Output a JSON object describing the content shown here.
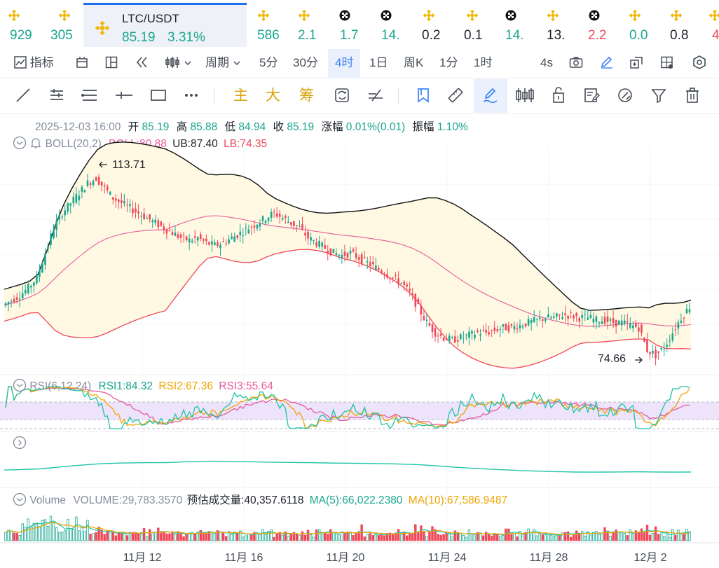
{
  "ticker": {
    "items": [
      {
        "value": "929",
        "icon": "binance-icon",
        "color": "#1aa68f"
      },
      {
        "value": "305",
        "icon": "binance-icon",
        "color": "#1aa68f"
      },
      {
        "value": "586",
        "icon": "binance-icon",
        "color": "#1aa68f"
      },
      {
        "value": "2.1",
        "icon": "binance-icon",
        "color": "#1aa68f"
      },
      {
        "value": "1.7",
        "icon": "checker-icon",
        "color": "#1aa68f"
      },
      {
        "value": "14.",
        "icon": "checker-icon",
        "color": "#1aa68f"
      },
      {
        "value": "0.2",
        "icon": "binance-icon",
        "color": "#1e2329"
      },
      {
        "value": "0.1",
        "icon": "binance-icon",
        "color": "#1e2329"
      },
      {
        "value": "14.",
        "icon": "checker-icon",
        "color": "#1aa68f"
      },
      {
        "value": "13.",
        "icon": "binance-icon",
        "color": "#1e2329"
      },
      {
        "value": "2.2",
        "icon": "checker-icon",
        "color": "#f04859"
      },
      {
        "value": "0.0",
        "icon": "binance-icon",
        "color": "#1aa68f"
      },
      {
        "value": "0.8",
        "icon": "binance-icon",
        "color": "#1e2329"
      },
      {
        "value": "4",
        "icon": "binance-icon",
        "color": "#f04859"
      }
    ],
    "active": {
      "symbol": "LTC/USDT",
      "price": "85.19",
      "change": "3.31%"
    }
  },
  "toolbar": {
    "indicator_label": "指标",
    "period_label": "周期",
    "intervals": [
      "5分",
      "30分",
      "4时",
      "1日",
      "周K",
      "1分",
      "1时"
    ],
    "selected_interval": "4时",
    "refresh": "4s"
  },
  "drawing_tools": {
    "zhu": "主",
    "da": "大",
    "chou": "筹"
  },
  "ohlc": {
    "date": "2025-12-03 16:00",
    "open_label": "开",
    "open": "85.19",
    "high_label": "高",
    "high": "85.88",
    "low_label": "低",
    "low": "84.94",
    "close_label": "收",
    "close": "85.19",
    "chg_label": "涨幅",
    "chg": "0.01%(0.01)",
    "amp_label": "振幅",
    "amp": "1.10%"
  },
  "boll": {
    "name": "BOLL(20,2)",
    "boll": "BOLL:80.88",
    "ub": "UB:87.40",
    "lb": "LB:74.35"
  },
  "price_labels": {
    "high": "113.71",
    "low": "74.66"
  },
  "rsi": {
    "name": "RSI(6,12,24)",
    "rsi1": "RSI1:84.32",
    "rsi2": "RSI2:67.36",
    "rsi3": "RSI3:55.64"
  },
  "volume": {
    "name": "Volume",
    "volume": "VOLUME:29,783.3570",
    "estimate": "预估成交量:40,357.6118",
    "ma5": "MA(5):66,022.2380",
    "ma10": "MA(10):67,586.9487"
  },
  "xaxis": [
    "11月 12",
    "11月 16",
    "11月 20",
    "11月 24",
    "11月 28",
    "12月 2"
  ],
  "colors": {
    "up": "#1aa68f",
    "down": "#f04859",
    "accent": "#3b82f6",
    "gold": "#d8a40b"
  },
  "chart_data": {
    "type": "candlestick",
    "title": "LTC/USDT 4时",
    "x_ticks": [
      "11月 12",
      "11月 16",
      "11月 20",
      "11月 24",
      "11月 28",
      "12月 2"
    ],
    "annotations": {
      "max": 113.71,
      "min": 74.66
    },
    "last_close": 85.19,
    "bollinger_last": {
      "mid": 80.88,
      "upper": 87.4,
      "lower": 74.35
    },
    "rsi_last": {
      "rsi1": 84.32,
      "rsi2": 67.36,
      "rsi3": 55.64
    },
    "volume_last": 29783.357,
    "close_series": [
      85.5,
      86.5,
      87.5,
      89,
      91,
      96,
      101,
      104,
      106,
      108,
      110,
      111,
      109,
      107,
      106,
      105,
      104,
      103,
      102,
      101,
      100,
      99,
      98.5,
      99,
      98,
      97.5,
      98,
      99,
      100,
      101,
      102,
      103,
      104,
      103,
      102,
      101,
      99,
      98,
      97,
      96,
      95.5,
      96,
      95,
      94,
      93,
      92,
      91,
      90,
      88,
      85,
      82,
      80,
      79,
      78.5,
      79,
      79.5,
      80,
      80,
      80.5,
      81,
      81,
      81.5,
      82,
      82.5,
      83,
      83,
      83.5,
      83.5,
      83,
      83,
      82.5,
      82.5,
      82,
      82,
      81.5,
      81,
      76.5,
      75.5,
      77,
      80,
      83,
      85.19
    ]
  }
}
